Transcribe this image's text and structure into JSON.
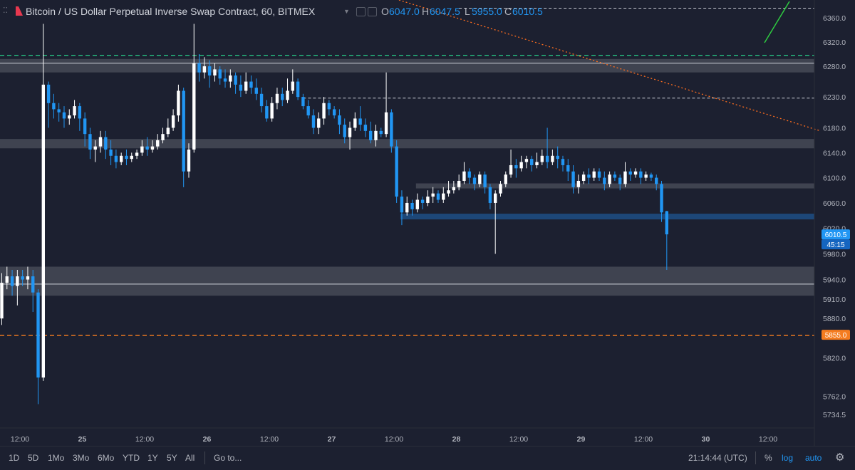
{
  "header": {
    "symbol_title": "Bitcoin / US Dollar Perpetual Inverse Swap Contract, 60, BITMEX",
    "ohlc": [
      {
        "label": "O",
        "value": "6047.0"
      },
      {
        "label": "H",
        "value": "6047.5"
      },
      {
        "label": "L",
        "value": "5955.0"
      },
      {
        "label": "C",
        "value": "6010.5"
      }
    ]
  },
  "colors": {
    "background": "#1c2030",
    "up_candle": "#ffffff",
    "down_candle": "#2196f3",
    "zone_gray": "#5d606b",
    "zone_blue": "#1e4a7c",
    "dashed_orange": "#f57c1f",
    "dashed_green": "#26c281",
    "trend_orange": "#ff6d1e",
    "trend_green": "#2ecc40",
    "price_tag": "#2196f3"
  },
  "chart_data": {
    "type": "candlestick",
    "y_axis": {
      "ticks": [
        {
          "label": "6360.0",
          "value": 6360
        },
        {
          "label": "6320.0",
          "value": 6320
        },
        {
          "label": "6280.0",
          "value": 6280
        },
        {
          "label": "6230.0",
          "value": 6230
        },
        {
          "label": "6180.0",
          "value": 6180
        },
        {
          "label": "6140.0",
          "value": 6140
        },
        {
          "label": "6100.0",
          "value": 6100
        },
        {
          "label": "6060.0",
          "value": 6060
        },
        {
          "label": "6020.0",
          "value": 6020
        },
        {
          "label": "5980.0",
          "value": 5980
        },
        {
          "label": "5940.0",
          "value": 5940
        },
        {
          "label": "5910.0",
          "value": 5910
        },
        {
          "label": "5880.0",
          "value": 5880
        },
        {
          "label": "5820.0",
          "value": 5820
        },
        {
          "label": "5762.0",
          "value": 5762
        },
        {
          "label": "5734.5",
          "value": 5734.5
        }
      ],
      "scale": "log"
    },
    "x_axis": {
      "ticks": [
        {
          "label": "12:00",
          "hour": 0
        },
        {
          "label": "25",
          "hour": 12
        },
        {
          "label": "12:00",
          "hour": 24
        },
        {
          "label": "26",
          "hour": 36
        },
        {
          "label": "12:00",
          "hour": 48
        },
        {
          "label": "27",
          "hour": 60
        },
        {
          "label": "12:00",
          "hour": 72
        },
        {
          "label": "28",
          "hour": 84
        },
        {
          "label": "12:00",
          "hour": 96
        },
        {
          "label": "29",
          "hour": 108
        },
        {
          "label": "12:00",
          "hour": 120
        },
        {
          "label": "30",
          "hour": 132
        },
        {
          "label": "12:00",
          "hour": 144
        }
      ]
    },
    "candles": [
      [
        5880,
        5935,
        5870,
        5950
      ],
      [
        5935,
        5945,
        5925,
        5960
      ],
      [
        5945,
        5930,
        5915,
        5955
      ],
      [
        5930,
        5945,
        5900,
        5955
      ],
      [
        5945,
        5940,
        5930,
        5955
      ],
      [
        5940,
        5945,
        5925,
        5960
      ],
      [
        5945,
        5920,
        5890,
        5955
      ],
      [
        5920,
        5790,
        5750,
        5925
      ],
      [
        5790,
        6250,
        5785,
        6350
      ],
      [
        6250,
        6220,
        6180,
        6255
      ],
      [
        6220,
        6210,
        6195,
        6235
      ],
      [
        6210,
        6205,
        6190,
        6220
      ],
      [
        6205,
        6195,
        6180,
        6215
      ],
      [
        6195,
        6200,
        6185,
        6210
      ],
      [
        6200,
        6215,
        6195,
        6225
      ],
      [
        6215,
        6195,
        6175,
        6220
      ],
      [
        6195,
        6170,
        6150,
        6205
      ],
      [
        6170,
        6145,
        6130,
        6180
      ],
      [
        6145,
        6150,
        6125,
        6160
      ],
      [
        6150,
        6165,
        6140,
        6175
      ],
      [
        6165,
        6145,
        6130,
        6175
      ],
      [
        6145,
        6135,
        6120,
        6160
      ],
      [
        6135,
        6125,
        6115,
        6145
      ],
      [
        6125,
        6135,
        6120,
        6140
      ],
      [
        6135,
        6130,
        6120,
        6145
      ],
      [
        6130,
        6135,
        6125,
        6140
      ],
      [
        6135,
        6140,
        6130,
        6145
      ],
      [
        6140,
        6150,
        6135,
        6160
      ],
      [
        6150,
        6145,
        6135,
        6165
      ],
      [
        6145,
        6150,
        6140,
        6160
      ],
      [
        6150,
        6160,
        6145,
        6170
      ],
      [
        6160,
        6170,
        6155,
        6180
      ],
      [
        6170,
        6180,
        6165,
        6195
      ],
      [
        6180,
        6200,
        6175,
        6210
      ],
      [
        6200,
        6240,
        6190,
        6250
      ],
      [
        6240,
        6110,
        6085,
        6245
      ],
      [
        6110,
        6145,
        6100,
        6155
      ],
      [
        6145,
        6285,
        6140,
        6350
      ],
      [
        6285,
        6270,
        6255,
        6300
      ],
      [
        6270,
        6280,
        6260,
        6295
      ],
      [
        6280,
        6265,
        6245,
        6290
      ],
      [
        6265,
        6275,
        6255,
        6285
      ],
      [
        6275,
        6260,
        6250,
        6280
      ],
      [
        6260,
        6255,
        6245,
        6275
      ],
      [
        6255,
        6265,
        6245,
        6275
      ],
      [
        6265,
        6250,
        6235,
        6270
      ],
      [
        6250,
        6240,
        6230,
        6265
      ],
      [
        6240,
        6255,
        6235,
        6270
      ],
      [
        6255,
        6245,
        6235,
        6265
      ],
      [
        6245,
        6235,
        6225,
        6260
      ],
      [
        6235,
        6215,
        6205,
        6245
      ],
      [
        6215,
        6195,
        6190,
        6225
      ],
      [
        6195,
        6220,
        6190,
        6230
      ],
      [
        6220,
        6235,
        6210,
        6245
      ],
      [
        6235,
        6225,
        6215,
        6245
      ],
      [
        6225,
        6240,
        6220,
        6260
      ],
      [
        6240,
        6255,
        6235,
        6275
      ],
      [
        6255,
        6230,
        6225,
        6260
      ],
      [
        6230,
        6215,
        6210,
        6235
      ],
      [
        6215,
        6200,
        6195,
        6225
      ],
      [
        6200,
        6180,
        6170,
        6210
      ],
      [
        6180,
        6195,
        6170,
        6205
      ],
      [
        6195,
        6220,
        6185,
        6230
      ],
      [
        6220,
        6210,
        6200,
        6225
      ],
      [
        6210,
        6200,
        6195,
        6215
      ],
      [
        6200,
        6185,
        6170,
        6210
      ],
      [
        6185,
        6165,
        6155,
        6195
      ],
      [
        6165,
        6180,
        6145,
        6190
      ],
      [
        6180,
        6195,
        6175,
        6205
      ],
      [
        6195,
        6185,
        6175,
        6215
      ],
      [
        6185,
        6175,
        6165,
        6195
      ],
      [
        6175,
        6160,
        6155,
        6190
      ],
      [
        6160,
        6175,
        6150,
        6185
      ],
      [
        6175,
        6170,
        6165,
        6180
      ],
      [
        6170,
        6205,
        6165,
        6270
      ],
      [
        6205,
        6150,
        6140,
        6210
      ],
      [
        6150,
        6070,
        6060,
        6160
      ],
      [
        6070,
        6045,
        6025,
        6080
      ],
      [
        6045,
        6060,
        6040,
        6070
      ],
      [
        6060,
        6050,
        6040,
        6065
      ],
      [
        6050,
        6065,
        6045,
        6075
      ],
      [
        6065,
        6060,
        6050,
        6070
      ],
      [
        6060,
        6070,
        6055,
        6080
      ],
      [
        6070,
        6075,
        6060,
        6085
      ],
      [
        6075,
        6065,
        6060,
        6080
      ],
      [
        6065,
        6075,
        6060,
        6085
      ],
      [
        6075,
        6080,
        6070,
        6095
      ],
      [
        6080,
        6085,
        6075,
        6095
      ],
      [
        6085,
        6095,
        6080,
        6105
      ],
      [
        6095,
        6110,
        6090,
        6125
      ],
      [
        6110,
        6100,
        6090,
        6115
      ],
      [
        6100,
        6090,
        6080,
        6105
      ],
      [
        6090,
        6105,
        6085,
        6110
      ],
      [
        6105,
        6085,
        6075,
        6110
      ],
      [
        6085,
        6060,
        6050,
        6090
      ],
      [
        6060,
        6075,
        5980,
        6080
      ],
      [
        6075,
        6090,
        6070,
        6095
      ],
      [
        6090,
        6105,
        6085,
        6110
      ],
      [
        6105,
        6120,
        6100,
        6145
      ],
      [
        6120,
        6115,
        6100,
        6130
      ],
      [
        6115,
        6125,
        6110,
        6135
      ],
      [
        6125,
        6130,
        6115,
        6135
      ],
      [
        6130,
        6120,
        6110,
        6135
      ],
      [
        6120,
        6125,
        6115,
        6140
      ],
      [
        6125,
        6135,
        6120,
        6145
      ],
      [
        6135,
        6125,
        6115,
        6180
      ],
      [
        6125,
        6135,
        6120,
        6145
      ],
      [
        6135,
        6130,
        6115,
        6150
      ],
      [
        6130,
        6120,
        6110,
        6135
      ],
      [
        6120,
        6110,
        6095,
        6130
      ],
      [
        6110,
        6085,
        6075,
        6120
      ],
      [
        6085,
        6095,
        6075,
        6105
      ],
      [
        6095,
        6105,
        6090,
        6110
      ],
      [
        6105,
        6100,
        6090,
        6115
      ],
      [
        6100,
        6110,
        6095,
        6115
      ],
      [
        6110,
        6100,
        6095,
        6115
      ],
      [
        6100,
        6090,
        6080,
        6110
      ],
      [
        6090,
        6105,
        6085,
        6110
      ],
      [
        6105,
        6100,
        6095,
        6110
      ],
      [
        6100,
        6090,
        6080,
        6105
      ],
      [
        6090,
        6110,
        6085,
        6125
      ],
      [
        6110,
        6105,
        6095,
        6115
      ],
      [
        6105,
        6110,
        6100,
        6115
      ],
      [
        6110,
        6100,
        6090,
        6115
      ],
      [
        6100,
        6105,
        6095,
        6110
      ],
      [
        6105,
        6100,
        6095,
        6108
      ],
      [
        6100,
        6090,
        6080,
        6105
      ],
      [
        6090,
        6045,
        6030,
        6095
      ],
      [
        6047,
        6010.5,
        5955,
        6047.5
      ]
    ],
    "zones": [
      {
        "color": "gray",
        "low": 6270,
        "high": 6292
      },
      {
        "color": "gray",
        "low": 6147,
        "high": 6162
      },
      {
        "color": "gray",
        "low": 6083,
        "high": 6091,
        "start_index": 80
      },
      {
        "color": "blue",
        "low": 6034,
        "high": 6043,
        "start_index": 77
      },
      {
        "color": "gray",
        "low": 5915,
        "high": 5960
      }
    ],
    "horizontal_lines": [
      {
        "price": 6285,
        "style": "solid",
        "color": "white"
      },
      {
        "price": 5933,
        "style": "solid",
        "color": "white"
      },
      {
        "price": 6376,
        "style": "dashed",
        "color": "white",
        "start_index": 88
      },
      {
        "price": 6228,
        "style": "dashed",
        "color": "white",
        "start_index": 58
      },
      {
        "price": 6298,
        "style": "dashed",
        "color": "green"
      },
      {
        "price": 5854,
        "style": "dashed",
        "color": "orange"
      }
    ],
    "price_labels": [
      {
        "label": "6010.5",
        "value": 6010.5
      },
      {
        "label": "45:15",
        "value": 5992
      },
      {
        "label": "5855.0",
        "value": 5855
      }
    ]
  },
  "toolbar": {
    "ranges": [
      "1D",
      "5D",
      "1Mo",
      "3Mo",
      "6Mo",
      "YTD",
      "1Y",
      "5Y",
      "All"
    ],
    "goto": "Go to...",
    "time": "21:14:44 (UTC)",
    "percent": "%",
    "log": "log",
    "auto": "auto"
  }
}
